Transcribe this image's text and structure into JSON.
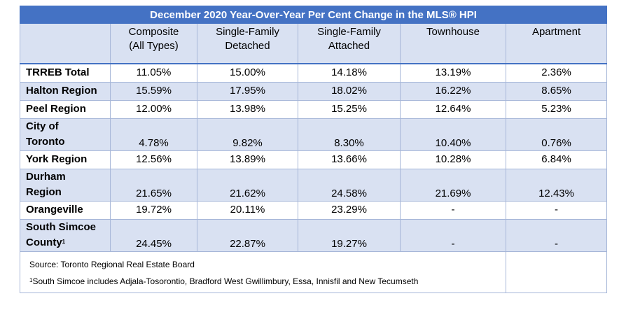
{
  "title": "December 2020 Year-Over-Year Per Cent Change in the MLS® HPI",
  "columns": [
    {
      "line1": "Composite",
      "line2": "(All Types)"
    },
    {
      "line1": "Single-Family",
      "line2": "Detached"
    },
    {
      "line1": "Single-Family",
      "line2": "Attached"
    },
    {
      "line1": "Townhouse",
      "line2": ""
    },
    {
      "line1": "Apartment",
      "line2": ""
    }
  ],
  "rows": [
    {
      "label1": "TRREB Total",
      "label2": "",
      "values": [
        "11.05%",
        "15.00%",
        "14.18%",
        "13.19%",
        "2.36%"
      ]
    },
    {
      "label1": "Halton Region",
      "label2": "",
      "values": [
        "15.59%",
        "17.95%",
        "18.02%",
        "16.22%",
        "8.65%"
      ]
    },
    {
      "label1": "Peel Region",
      "label2": "",
      "values": [
        "12.00%",
        "13.98%",
        "15.25%",
        "12.64%",
        "5.23%"
      ]
    },
    {
      "label1": "City of",
      "label2": "Toronto",
      "values": [
        "4.78%",
        "9.82%",
        "8.30%",
        "10.40%",
        "0.76%"
      ]
    },
    {
      "label1": "York Region",
      "label2": "",
      "values": [
        "12.56%",
        "13.89%",
        "13.66%",
        "10.28%",
        "6.84%"
      ]
    },
    {
      "label1": "Durham",
      "label2": "Region",
      "values": [
        "21.65%",
        "21.62%",
        "24.58%",
        "21.69%",
        "12.43%"
      ]
    },
    {
      "label1": "Orangeville",
      "label2": "",
      "values": [
        "19.72%",
        "20.11%",
        "23.29%",
        "-",
        "-"
      ]
    },
    {
      "label1": "South Simcoe",
      "label2": "County",
      "label_sup": "1",
      "values": [
        "24.45%",
        "22.87%",
        "19.27%",
        "-",
        "-"
      ]
    }
  ],
  "footer": {
    "source": "Source: Toronto Regional Real Estate Board",
    "note_sup": "1",
    "note": "South Simcoe includes Adjala-Tosorontio, Bradford West Gwillimbury, Essa, Innisfil and New Tecumseth"
  },
  "colors": {
    "header_blue": "#4472c4",
    "band_light_blue": "#d9e1f2",
    "border": "#a6b6d8"
  },
  "chart_data": {
    "type": "table",
    "title": "December 2020 Year-Over-Year Per Cent Change in the MLS® HPI",
    "columns": [
      "Composite (All Types)",
      "Single-Family Detached",
      "Single-Family Attached",
      "Townhouse",
      "Apartment"
    ],
    "rows": [
      "TRREB Total",
      "Halton Region",
      "Peel Region",
      "City of Toronto",
      "York Region",
      "Durham Region",
      "Orangeville",
      "South Simcoe County"
    ],
    "values": [
      [
        "11.05%",
        "15.00%",
        "14.18%",
        "13.19%",
        "2.36%"
      ],
      [
        "15.59%",
        "17.95%",
        "18.02%",
        "16.22%",
        "8.65%"
      ],
      [
        "12.00%",
        "13.98%",
        "15.25%",
        "12.64%",
        "5.23%"
      ],
      [
        "4.78%",
        "9.82%",
        "8.30%",
        "10.40%",
        "0.76%"
      ],
      [
        "12.56%",
        "13.89%",
        "13.66%",
        "10.28%",
        "6.84%"
      ],
      [
        "21.65%",
        "21.62%",
        "24.58%",
        "21.69%",
        "12.43%"
      ],
      [
        "19.72%",
        "20.11%",
        "23.29%",
        "-",
        "-"
      ],
      [
        "24.45%",
        "22.87%",
        "19.27%",
        "-",
        "-"
      ]
    ]
  }
}
